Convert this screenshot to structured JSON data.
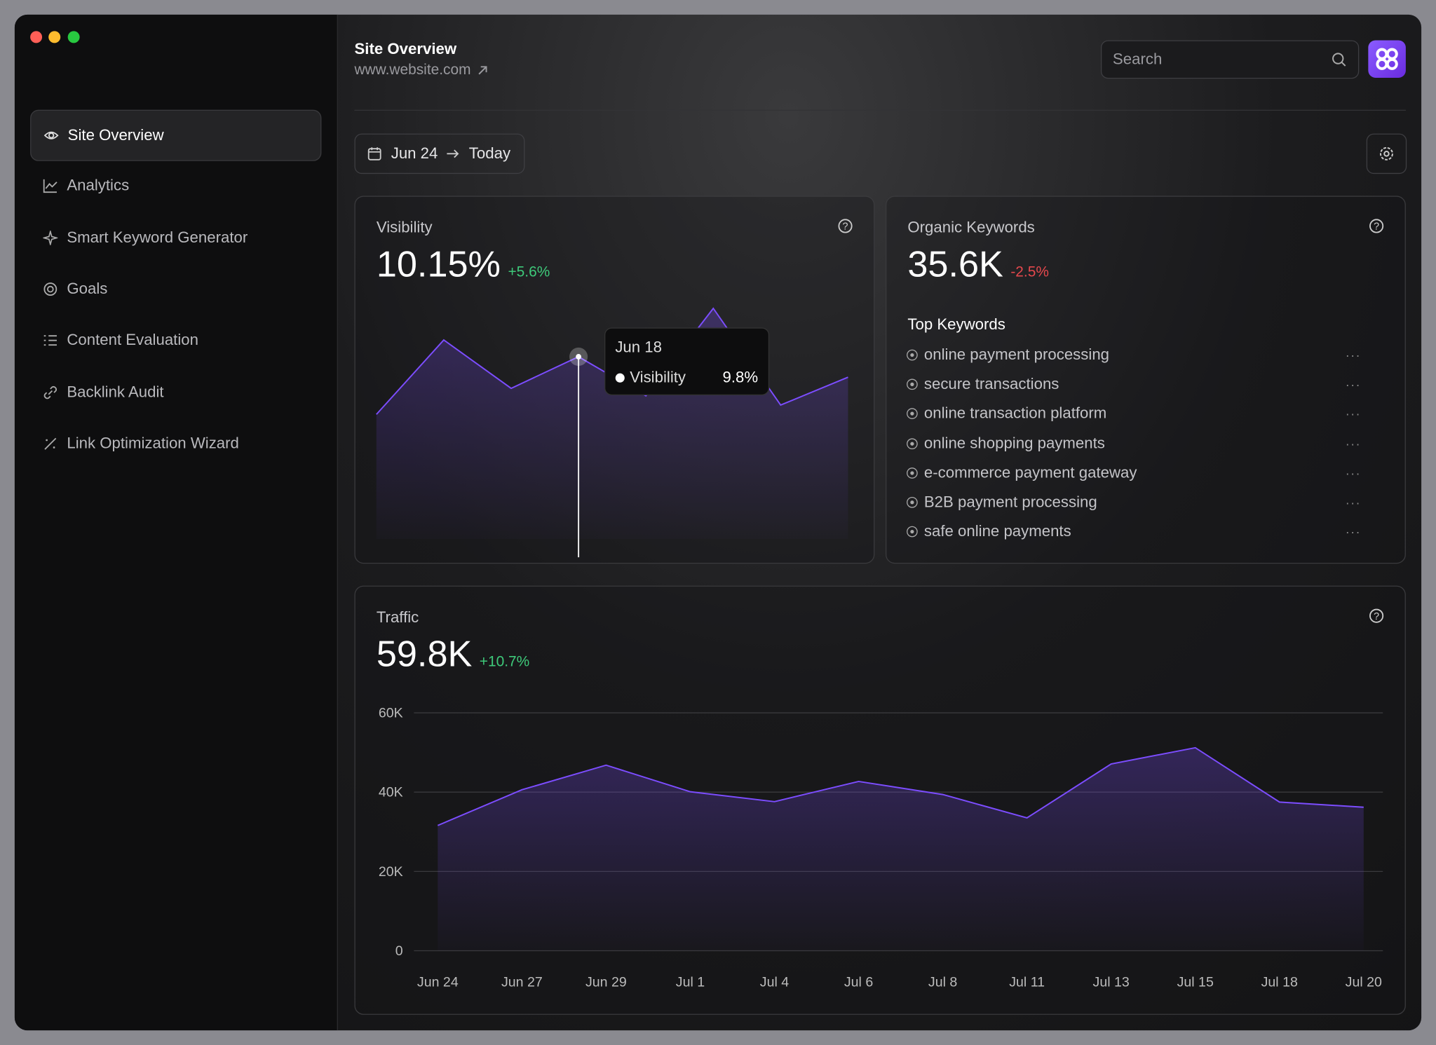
{
  "header": {
    "title": "Site Overview",
    "url": "www.website.com",
    "search_placeholder": "Search"
  },
  "sidebar": {
    "items": [
      "Site Overview",
      "Analytics",
      "Smart Keyword Generator",
      "Goals",
      "Content Evaluation",
      "Backlink Audit",
      "Link Optimization Wizard"
    ],
    "active": 0
  },
  "date_range": {
    "start": "Jun 24",
    "end": "Today"
  },
  "visibility": {
    "title": "Visibility",
    "value": "10.15%",
    "change": "+5.6%",
    "chart_data": {
      "type": "area",
      "color": "#7c4dff",
      "values": [
        6.7,
        10.7,
        8.1,
        9.8,
        7.7,
        12.4,
        7.2,
        8.7
      ],
      "tooltip": {
        "index": 3,
        "label": "Jun 18",
        "series": "Visibility",
        "value": "9.8%"
      }
    }
  },
  "organic_keywords": {
    "title": "Organic Keywords",
    "value": "35.6K",
    "change": "-2.5%",
    "list_title": "Top Keywords",
    "keywords": [
      "online payment processing",
      "secure transactions",
      "online transaction platform",
      "online shopping payments",
      "e-commerce payment gateway",
      "B2B payment processing",
      "safe online payments"
    ]
  },
  "traffic": {
    "title": "Traffic",
    "value": "59.8K",
    "change": "+10.7%",
    "chart_data": {
      "type": "area",
      "color": "#7c4dff",
      "categories": [
        "Jun 24",
        "Jun 27",
        "Jun 29",
        "Jul 1",
        "Jul 4",
        "Jul 6",
        "Jul 8",
        "Jul 11",
        "Jul 13",
        "Jul 15",
        "Jul 18",
        "Jul 20"
      ],
      "values": [
        31600,
        40600,
        46800,
        40100,
        37600,
        42700,
        39400,
        33500,
        47100,
        51200,
        37500,
        36200
      ],
      "ylim": [
        0,
        60000
      ],
      "yticks": [
        0,
        {
          "value": 20000,
          "label": "20K"
        },
        {
          "value": 40000,
          "label": "40K"
        },
        {
          "value": 60000,
          "label": "60K"
        }
      ],
      "grid": true
    }
  }
}
